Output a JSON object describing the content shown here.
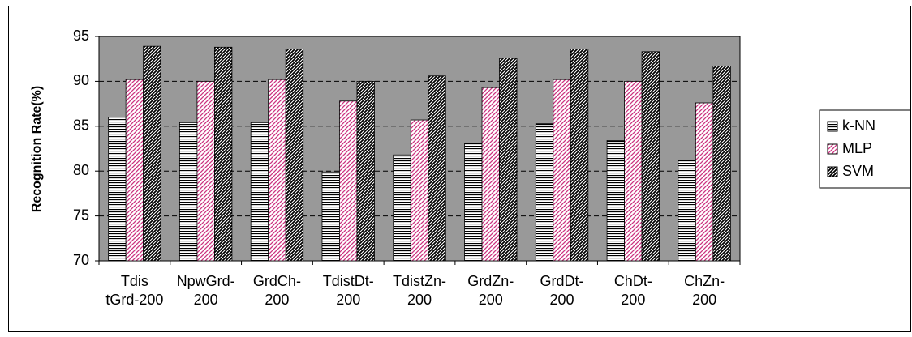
{
  "chart_data": {
    "type": "bar",
    "y_label": "Recognition Rate(%)",
    "categories": [
      [
        "Tdis",
        "tGrd-200"
      ],
      [
        "NpwGrd-",
        "200"
      ],
      [
        "GrdCh-",
        "200"
      ],
      [
        "TdistDt-",
        "200"
      ],
      [
        "TdistZn-",
        "200"
      ],
      [
        "GrdZn-",
        "200"
      ],
      [
        "GrdDt-",
        "200"
      ],
      [
        "ChDt-",
        "200"
      ],
      [
        "ChZn-",
        "200"
      ]
    ],
    "series": [
      {
        "name": "k-NN",
        "color": "#000000",
        "pattern": "horizontal",
        "values": [
          86.0,
          85.4,
          85.4,
          79.9,
          81.8,
          83.1,
          85.3,
          83.4,
          81.2
        ]
      },
      {
        "name": "MLP",
        "color": "#cc3380",
        "pattern": "diagonal",
        "values": [
          90.2,
          90.0,
          90.2,
          87.8,
          85.7,
          89.3,
          90.2,
          90.0,
          87.6
        ]
      },
      {
        "name": "SVM",
        "color": "#000000",
        "pattern": "dense-diagonal",
        "values": [
          93.9,
          93.8,
          93.6,
          90.0,
          90.6,
          92.6,
          93.6,
          93.3,
          91.7
        ]
      }
    ],
    "ylim": [
      70,
      95
    ],
    "yticks": [
      70,
      75,
      80,
      85,
      90,
      95
    ],
    "grid": true,
    "plot_background": "#999999",
    "legend": "right"
  }
}
